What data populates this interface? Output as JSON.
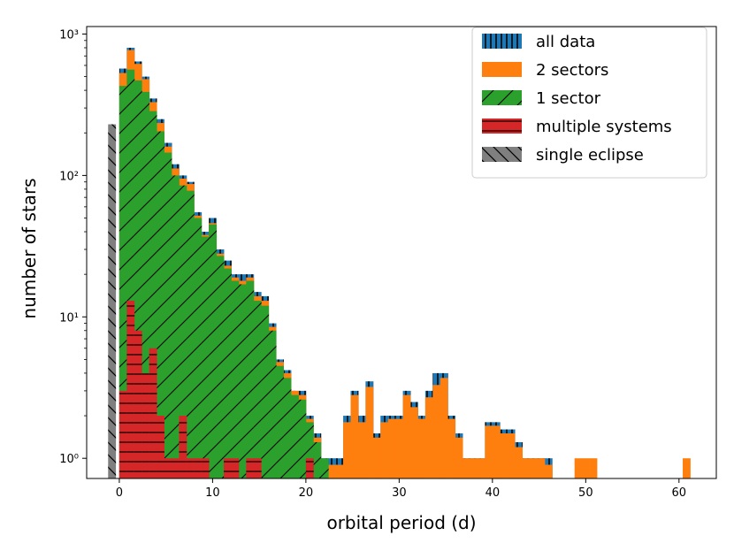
{
  "chart_data": {
    "type": "histogram",
    "xlabel": "orbital period (d)",
    "ylabel": "number of stars",
    "xlim": [
      -3.5,
      64
    ],
    "ylim": [
      0.72,
      1130
    ],
    "yscale": "log",
    "bin_width": 0.8,
    "x_ticks": [
      0,
      10,
      20,
      30,
      40,
      50,
      60
    ],
    "x_tick_labels": [
      "0",
      "10",
      "20",
      "30",
      "40",
      "50",
      "60"
    ],
    "y_ticks": [
      1,
      10,
      100,
      1000
    ],
    "y_tick_labels": [
      "10⁰",
      "10¹",
      "10²",
      "10³"
    ],
    "legend": {
      "position": "top-right",
      "entries": [
        "all data",
        "2 sectors",
        "1 sector",
        "multiple systems",
        "single eclipse"
      ]
    },
    "colors": {
      "all_data": "#1f77b4",
      "two_sectors": "#ff7f0e",
      "one_sector": "#2ca02c",
      "multiple": "#d62728",
      "single": "#7f7f7f"
    },
    "series": [
      {
        "name": "all data",
        "key": "all_data",
        "hatch": "vertical",
        "bins": [
          [
            0.0,
            570
          ],
          [
            0.8,
            800
          ],
          [
            1.6,
            640
          ],
          [
            2.4,
            500
          ],
          [
            3.2,
            350
          ],
          [
            4.0,
            250
          ],
          [
            4.8,
            170
          ],
          [
            5.6,
            120
          ],
          [
            6.4,
            100
          ],
          [
            7.2,
            90
          ],
          [
            8.0,
            55
          ],
          [
            8.8,
            40
          ],
          [
            9.6,
            50
          ],
          [
            10.4,
            30
          ],
          [
            11.2,
            25
          ],
          [
            12.0,
            20
          ],
          [
            12.8,
            20
          ],
          [
            13.6,
            20
          ],
          [
            14.4,
            15
          ],
          [
            15.2,
            14
          ],
          [
            16.0,
            9
          ],
          [
            16.8,
            5
          ],
          [
            17.6,
            4.2
          ],
          [
            18.4,
            3
          ],
          [
            19.2,
            3
          ],
          [
            20.0,
            2
          ],
          [
            20.8,
            1.5
          ],
          [
            21.6,
            1
          ],
          [
            22.4,
            1
          ],
          [
            23.2,
            1
          ],
          [
            24.0,
            2
          ],
          [
            24.8,
            3
          ],
          [
            25.6,
            2
          ],
          [
            26.4,
            3.5
          ],
          [
            27.2,
            1.5
          ],
          [
            28.0,
            2
          ],
          [
            28.8,
            2
          ],
          [
            29.6,
            2
          ],
          [
            30.4,
            3
          ],
          [
            31.2,
            2.5
          ],
          [
            32.0,
            2
          ],
          [
            32.8,
            3
          ],
          [
            33.6,
            4
          ],
          [
            34.4,
            4
          ],
          [
            35.2,
            2
          ],
          [
            36.0,
            1.5
          ],
          [
            36.8,
            1
          ],
          [
            37.6,
            1
          ],
          [
            38.4,
            1
          ],
          [
            39.2,
            1.8
          ],
          [
            40.0,
            1.8
          ],
          [
            40.8,
            1.6
          ],
          [
            41.6,
            1.6
          ],
          [
            42.4,
            1.3
          ],
          [
            43.2,
            1
          ],
          [
            44.0,
            1
          ],
          [
            44.8,
            1
          ],
          [
            45.6,
            1
          ]
        ]
      },
      {
        "name": "2 sectors",
        "key": "two_sectors",
        "hatch": "none",
        "bins": [
          [
            0.0,
            530
          ],
          [
            0.8,
            770
          ],
          [
            1.6,
            615
          ],
          [
            2.4,
            480
          ],
          [
            3.2,
            330
          ],
          [
            4.0,
            235
          ],
          [
            4.8,
            160
          ],
          [
            5.6,
            112
          ],
          [
            6.4,
            95
          ],
          [
            7.2,
            87
          ],
          [
            8.0,
            52
          ],
          [
            8.8,
            38
          ],
          [
            9.6,
            46
          ],
          [
            10.4,
            28
          ],
          [
            11.2,
            23
          ],
          [
            12.0,
            19
          ],
          [
            12.8,
            18
          ],
          [
            13.6,
            19
          ],
          [
            14.4,
            14
          ],
          [
            15.2,
            13
          ],
          [
            16.0,
            8.5
          ],
          [
            16.8,
            4.8
          ],
          [
            17.6,
            4
          ],
          [
            18.4,
            3
          ],
          [
            19.2,
            2.8
          ],
          [
            20.0,
            1.9
          ],
          [
            20.8,
            1.4
          ],
          [
            21.6,
            0.9
          ],
          [
            22.4,
            0.9
          ],
          [
            23.2,
            0.9
          ],
          [
            24.0,
            1.8
          ],
          [
            24.8,
            2.8
          ],
          [
            25.6,
            1.8
          ],
          [
            26.4,
            3.2
          ],
          [
            27.2,
            1.4
          ],
          [
            28.0,
            1.8
          ],
          [
            28.8,
            1.9
          ],
          [
            29.6,
            1.9
          ],
          [
            30.4,
            2.8
          ],
          [
            31.2,
            2.3
          ],
          [
            32.0,
            1.9
          ],
          [
            32.8,
            2.7
          ],
          [
            33.6,
            3.3
          ],
          [
            34.4,
            3.7
          ],
          [
            35.2,
            1.9
          ],
          [
            36.0,
            1.4
          ],
          [
            36.8,
            1
          ],
          [
            37.6,
            1
          ],
          [
            38.4,
            1
          ],
          [
            39.2,
            1.7
          ],
          [
            40.0,
            1.7
          ],
          [
            40.8,
            1.5
          ],
          [
            41.6,
            1.5
          ],
          [
            42.4,
            1.2
          ],
          [
            43.2,
            1
          ],
          [
            44.0,
            1
          ],
          [
            44.8,
            1
          ],
          [
            45.6,
            0.9
          ],
          [
            48.8,
            1
          ],
          [
            49.6,
            1
          ],
          [
            50.4,
            1
          ],
          [
            60.4,
            1
          ]
        ]
      },
      {
        "name": "1 sector",
        "key": "one_sector",
        "hatch": "diagonal",
        "bins": [
          [
            0.0,
            430
          ],
          [
            0.8,
            560
          ],
          [
            1.6,
            470
          ],
          [
            2.4,
            390
          ],
          [
            3.2,
            285
          ],
          [
            4.0,
            205
          ],
          [
            4.8,
            145
          ],
          [
            5.6,
            100
          ],
          [
            6.4,
            85
          ],
          [
            7.2,
            78
          ],
          [
            8.0,
            50
          ],
          [
            8.8,
            37
          ],
          [
            9.6,
            45
          ],
          [
            10.4,
            27
          ],
          [
            11.2,
            22
          ],
          [
            12.0,
            18
          ],
          [
            12.8,
            17
          ],
          [
            13.6,
            18
          ],
          [
            14.4,
            13
          ],
          [
            15.2,
            12
          ],
          [
            16.0,
            8
          ],
          [
            16.8,
            4.5
          ],
          [
            17.6,
            3.7
          ],
          [
            18.4,
            2.8
          ],
          [
            19.2,
            2.6
          ],
          [
            20.0,
            1.8
          ],
          [
            20.8,
            1.3
          ],
          [
            21.6,
            1
          ]
        ]
      },
      {
        "name": "multiple systems",
        "key": "multiple",
        "hatch": "horizontal",
        "bins": [
          [
            0.0,
            3
          ],
          [
            0.8,
            13
          ],
          [
            1.6,
            8
          ],
          [
            2.4,
            4
          ],
          [
            3.2,
            6
          ],
          [
            4.0,
            2
          ],
          [
            4.8,
            1
          ],
          [
            5.6,
            1
          ],
          [
            6.4,
            2
          ],
          [
            7.2,
            1
          ],
          [
            8.0,
            1
          ],
          [
            8.8,
            1
          ],
          [
            11.2,
            1
          ],
          [
            12.0,
            1
          ],
          [
            13.6,
            1
          ],
          [
            14.4,
            1
          ],
          [
            20.0,
            1
          ]
        ]
      },
      {
        "name": "single eclipse",
        "key": "single",
        "hatch": "backslash",
        "bins": [
          [
            -1.2,
            230
          ]
        ]
      }
    ]
  }
}
